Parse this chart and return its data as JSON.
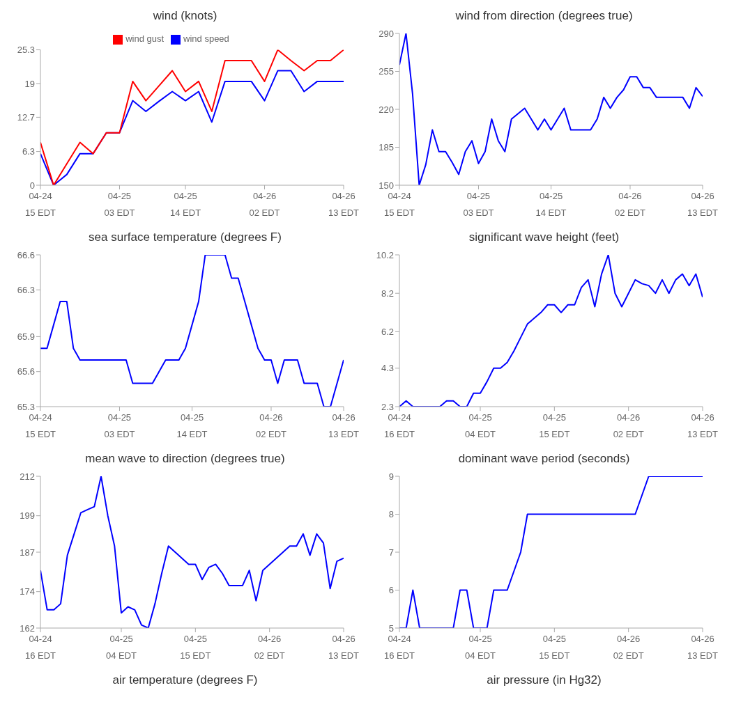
{
  "chart_data": [
    {
      "type": "line",
      "title": "wind (knots)",
      "legend": "top",
      "categories": [
        "04-24\n15 EDT",
        null,
        null,
        null,
        null,
        null,
        "04-25\n03 EDT",
        null,
        null,
        null,
        null,
        "04-25\n14 EDT",
        null,
        null,
        null,
        null,
        null,
        "04-26\n02 EDT",
        null,
        null,
        null,
        null,
        null,
        "04-26\n13 EDT"
      ],
      "ylim": [
        0,
        25.3
      ],
      "yticks": [
        0,
        6.3,
        12.7,
        19,
        25.3
      ],
      "series": [
        {
          "name": "wind speed",
          "color": "#0000ff",
          "values": [
            5.9,
            0,
            2.0,
            5.9,
            5.9,
            9.8,
            9.8,
            15.8,
            13.8,
            15.7,
            17.5,
            15.8,
            17.5,
            11.8,
            19.4,
            19.4,
            19.4,
            15.8,
            21.4,
            21.4,
            17.5,
            19.4,
            19.4,
            19.4
          ]
        },
        {
          "name": "wind gust",
          "color": "#ff0000",
          "values": [
            8.0,
            0,
            4.0,
            8.0,
            5.9,
            9.8,
            9.8,
            19.4,
            15.8,
            18.6,
            21.4,
            17.5,
            19.4,
            13.8,
            23.3,
            23.3,
            23.3,
            19.4,
            25.3,
            23.3,
            21.4,
            23.3,
            23.3,
            25.3
          ]
        }
      ]
    },
    {
      "type": "line",
      "title": "wind from direction (degrees true)",
      "categories": [
        "04-24\n15 EDT",
        null,
        null,
        null,
        null,
        null,
        null,
        null,
        null,
        null,
        null,
        null,
        "04-25\n03 EDT",
        null,
        null,
        null,
        null,
        null,
        null,
        null,
        null,
        null,
        null,
        "04-25\n14 EDT",
        null,
        null,
        null,
        null,
        null,
        null,
        null,
        null,
        null,
        null,
        null,
        "04-26\n02 EDT",
        null,
        null,
        null,
        null,
        null,
        null,
        null,
        null,
        null,
        null,
        "04-26\n13 EDT"
      ],
      "ylim": [
        150,
        290
      ],
      "yticks": [
        150,
        185,
        220,
        255,
        290
      ],
      "series": [
        {
          "color": "#0000ff",
          "values": [
            261,
            290,
            234,
            150,
            169,
            201,
            181,
            181,
            171,
            160,
            181,
            191,
            170,
            181,
            211,
            191,
            181,
            211,
            216,
            221,
            211,
            201,
            211,
            201,
            211,
            221,
            201,
            201,
            201,
            201,
            211,
            231,
            221,
            231,
            238,
            250,
            250,
            240,
            240,
            231,
            231,
            231,
            231,
            231,
            221,
            240,
            232
          ]
        }
      ]
    },
    {
      "type": "line",
      "title": "sea surface temperature (degrees F)",
      "categories": [
        "04-24\n15 EDT",
        null,
        null,
        null,
        null,
        null,
        null,
        null,
        null,
        null,
        null,
        null,
        "04-25\n03 EDT",
        null,
        null,
        null,
        null,
        null,
        null,
        null,
        null,
        null,
        null,
        "04-25\n14 EDT",
        null,
        null,
        null,
        null,
        null,
        null,
        null,
        null,
        null,
        null,
        null,
        "04-26\n02 EDT",
        null,
        null,
        null,
        null,
        null,
        null,
        null,
        null,
        null,
        null,
        "04-26\n13 EDT"
      ],
      "ylim": [
        65.3,
        66.6
      ],
      "yticks": [
        65.3,
        65.6,
        65.9,
        66.3,
        66.6
      ],
      "series": [
        {
          "color": "#0000ff",
          "values": [
            65.8,
            65.8,
            66.0,
            66.2,
            66.2,
            65.8,
            65.7,
            65.7,
            65.7,
            65.7,
            65.7,
            65.7,
            65.7,
            65.7,
            65.5,
            65.5,
            65.5,
            65.5,
            65.6,
            65.7,
            65.7,
            65.7,
            65.8,
            66.0,
            66.2,
            66.6,
            66.6,
            66.6,
            66.6,
            66.4,
            66.4,
            66.2,
            66.0,
            65.8,
            65.7,
            65.7,
            65.5,
            65.7,
            65.7,
            65.7,
            65.5,
            65.5,
            65.5,
            65.3,
            65.3,
            65.5,
            65.7
          ]
        }
      ]
    },
    {
      "type": "line",
      "title": "significant wave height (feet)",
      "categories": [
        "04-24\n16 EDT",
        null,
        null,
        null,
        null,
        null,
        null,
        null,
        null,
        null,
        null,
        null,
        "04-25\n04 EDT",
        null,
        null,
        null,
        null,
        null,
        null,
        null,
        null,
        null,
        null,
        "04-25\n15 EDT",
        null,
        null,
        null,
        null,
        null,
        null,
        null,
        null,
        null,
        null,
        "04-26\n02 EDT",
        null,
        null,
        null,
        null,
        null,
        null,
        null,
        null,
        null,
        null,
        "04-26\n13 EDT"
      ],
      "ylim": [
        2.3,
        10.2
      ],
      "yticks": [
        2.3,
        4.3,
        6.2,
        8.2,
        10.2
      ],
      "series": [
        {
          "color": "#0000ff",
          "values": [
            2.3,
            2.6,
            2.3,
            2.3,
            2.3,
            2.3,
            2.3,
            2.6,
            2.6,
            2.3,
            2.3,
            3.0,
            3.0,
            3.6,
            4.3,
            4.3,
            4.6,
            5.2,
            5.9,
            6.6,
            6.9,
            7.2,
            7.6,
            7.6,
            7.2,
            7.6,
            7.6,
            8.5,
            8.9,
            7.5,
            9.2,
            10.2,
            8.2,
            7.5,
            8.2,
            8.9,
            8.7,
            8.6,
            8.2,
            8.9,
            8.2,
            8.9,
            9.2,
            8.6,
            9.2,
            8.0
          ]
        }
      ]
    },
    {
      "type": "line",
      "title": "mean wave to direction (degrees true)",
      "categories": [
        "04-24\n16 EDT",
        null,
        null,
        null,
        null,
        null,
        null,
        null,
        null,
        null,
        null,
        null,
        "04-25\n04 EDT",
        null,
        null,
        null,
        null,
        null,
        null,
        null,
        null,
        null,
        null,
        "04-25\n15 EDT",
        null,
        null,
        null,
        null,
        null,
        null,
        null,
        null,
        null,
        null,
        "04-26\n02 EDT",
        null,
        null,
        null,
        null,
        null,
        null,
        null,
        null,
        null,
        null,
        "04-26\n13 EDT"
      ],
      "ylim": [
        162,
        212
      ],
      "yticks": [
        162,
        174,
        187,
        199,
        212
      ],
      "series": [
        {
          "color": "#0000ff",
          "values": [
            181,
            168,
            168,
            170,
            186,
            193,
            200,
            201,
            202,
            212,
            199,
            189,
            167,
            169,
            168,
            163,
            162,
            170,
            180,
            189,
            187,
            185,
            183,
            183,
            178,
            182,
            183,
            180,
            176,
            176,
            176,
            181,
            171,
            181,
            183,
            185,
            187,
            189,
            189,
            193,
            186,
            193,
            190,
            175,
            184,
            185
          ]
        }
      ]
    },
    {
      "type": "line",
      "title": "dominant wave period (seconds)",
      "categories": [
        "04-24\n16 EDT",
        null,
        null,
        null,
        null,
        null,
        null,
        null,
        null,
        null,
        null,
        null,
        "04-25\n04 EDT",
        null,
        null,
        null,
        null,
        null,
        null,
        null,
        null,
        null,
        null,
        "04-25\n15 EDT",
        null,
        null,
        null,
        null,
        null,
        null,
        null,
        null,
        null,
        null,
        "04-26\n02 EDT",
        null,
        null,
        null,
        null,
        null,
        null,
        null,
        null,
        null,
        null,
        "04-26\n13 EDT"
      ],
      "ylim": [
        5,
        9
      ],
      "yticks": [
        5,
        6,
        7,
        8,
        9
      ],
      "series": [
        {
          "color": "#0000ff",
          "values": [
            5,
            5,
            6,
            5,
            5,
            5,
            5,
            5,
            5,
            6,
            6,
            5,
            5,
            5,
            6,
            6,
            6,
            6.5,
            7,
            8,
            8,
            8,
            8,
            8,
            8,
            8,
            8,
            8,
            8,
            8,
            8,
            8,
            8,
            8,
            8,
            8,
            8.5,
            9,
            9,
            9,
            9,
            9,
            9,
            9,
            9,
            9
          ]
        }
      ]
    },
    {
      "type": "other",
      "title": "air temperature (degrees F)"
    },
    {
      "type": "other",
      "title": "air pressure (in Hg32)"
    }
  ]
}
